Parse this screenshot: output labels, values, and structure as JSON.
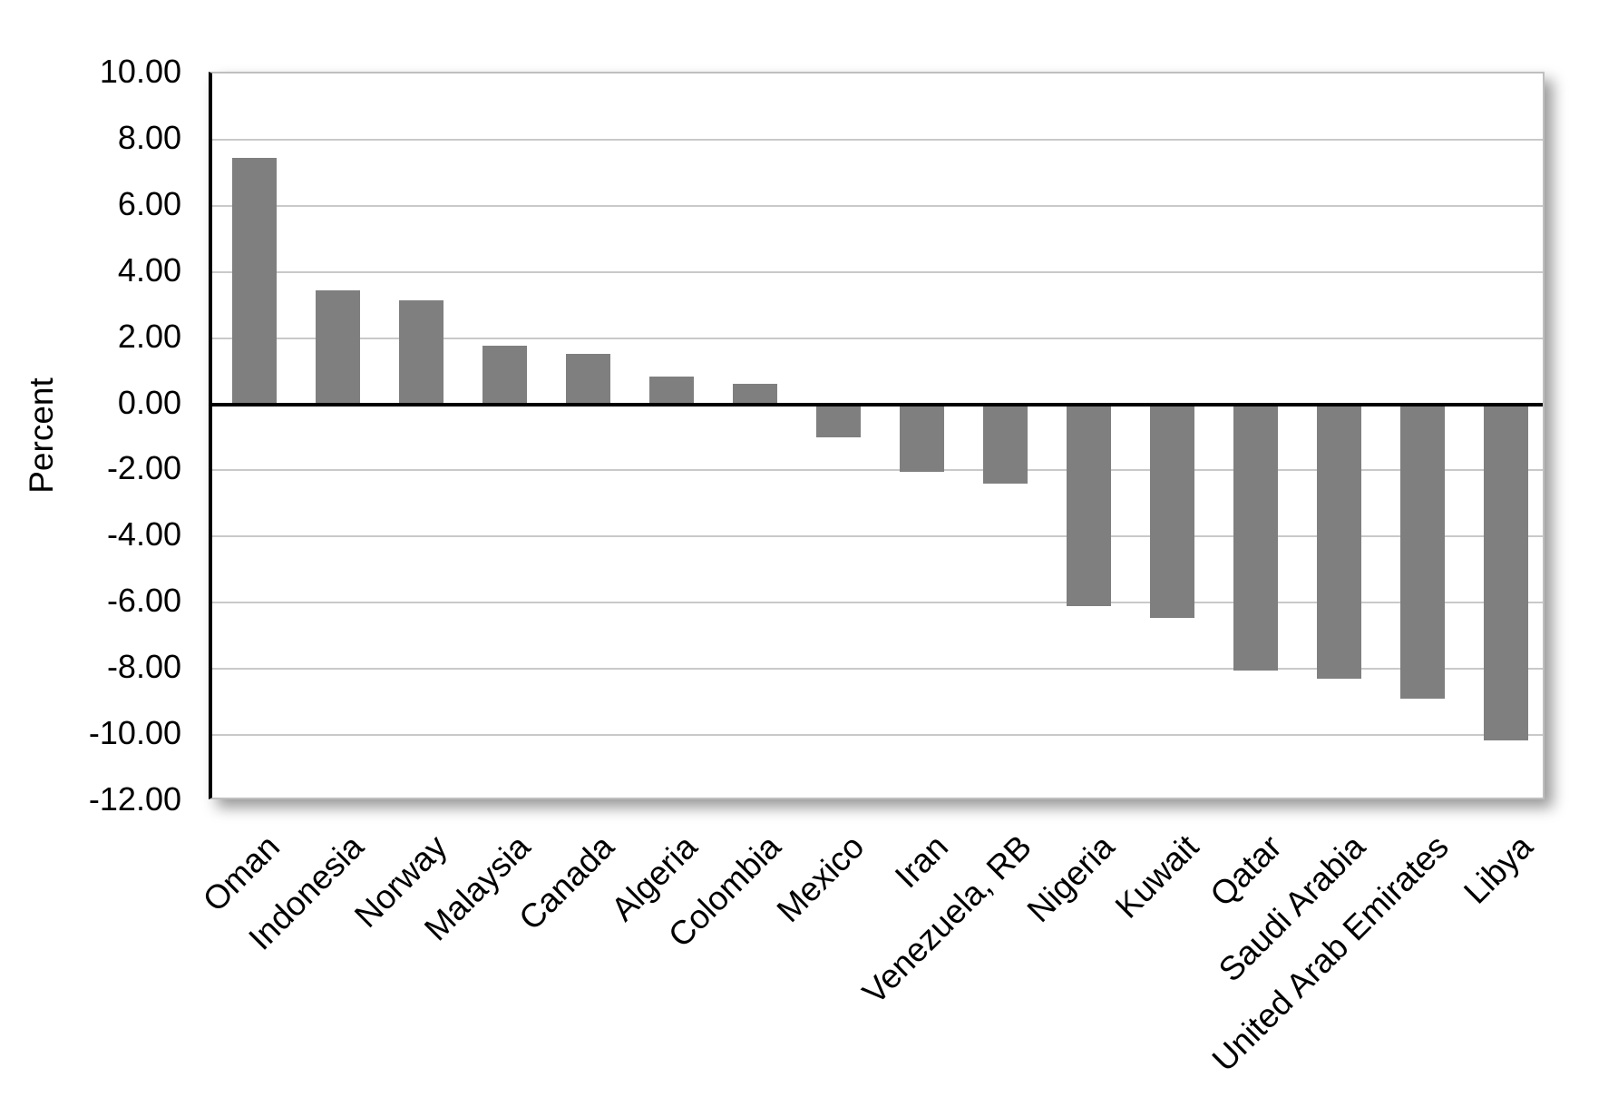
{
  "chart_data": {
    "type": "bar",
    "title": "",
    "xlabel": "",
    "ylabel": "Percent",
    "categories": [
      "Oman",
      "Indonesia",
      "Norway",
      "Malaysia",
      "Canada",
      "Algeria",
      "Colombia",
      "Mexico",
      "Iran",
      "Venezuela, RB",
      "Nigeria",
      "Kuwait",
      "Qatar",
      "Saudi Arabia",
      "United Arab Emirates",
      "Libya"
    ],
    "values": [
      7.45,
      3.45,
      3.15,
      1.78,
      1.52,
      0.85,
      0.62,
      -1.0,
      -2.05,
      -2.4,
      -6.1,
      -6.45,
      -8.05,
      -8.3,
      -8.9,
      -10.15
    ],
    "y_ticks": [
      "10.00",
      "8.00",
      "6.00",
      "4.00",
      "2.00",
      "0.00",
      "-2.00",
      "-4.00",
      "-6.00",
      "-8.00",
      "-10.00",
      "-12.00"
    ],
    "ylim": [
      -12,
      10
    ],
    "grid": true,
    "legend": "none",
    "colors": {
      "bar": "#7F7F7F",
      "gridline": "#C9C9C9",
      "plot_border": "#BFBFBF",
      "axis": "#000000",
      "background": "#FFFFFF"
    }
  }
}
